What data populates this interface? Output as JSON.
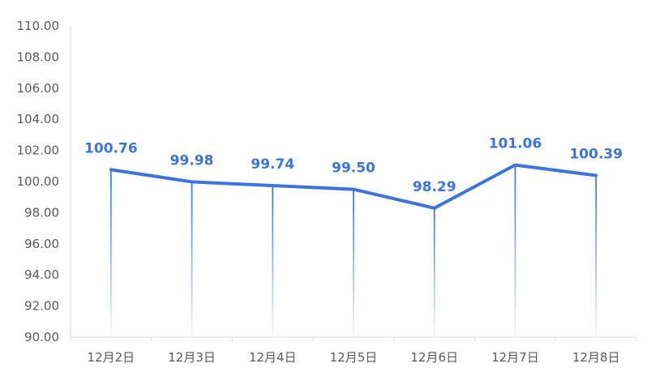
{
  "chart_data": {
    "type": "line",
    "title": "",
    "xlabel": "",
    "ylabel": "",
    "categories": [
      "12月2日",
      "12月3日",
      "12月4日",
      "12月5日",
      "12月6日",
      "12月7日",
      "12月8日"
    ],
    "values": [
      100.76,
      99.98,
      99.74,
      99.5,
      98.29,
      101.06,
      100.39
    ],
    "data_labels": [
      "100.76",
      "99.98",
      "99.74",
      "99.50",
      "98.29",
      "101.06",
      "100.39"
    ],
    "ylim": [
      90,
      110
    ],
    "y_ticks": [
      "90.00",
      "92.00",
      "94.00",
      "96.00",
      "98.00",
      "100.00",
      "102.00",
      "104.00",
      "106.00",
      "108.00",
      "110.00"
    ],
    "grid": false,
    "drop_lines": true,
    "colors": {
      "line": "#3b74e0",
      "label": "#3b74e0",
      "axis": "#d9d9d9",
      "tick_text": "#595959"
    }
  }
}
